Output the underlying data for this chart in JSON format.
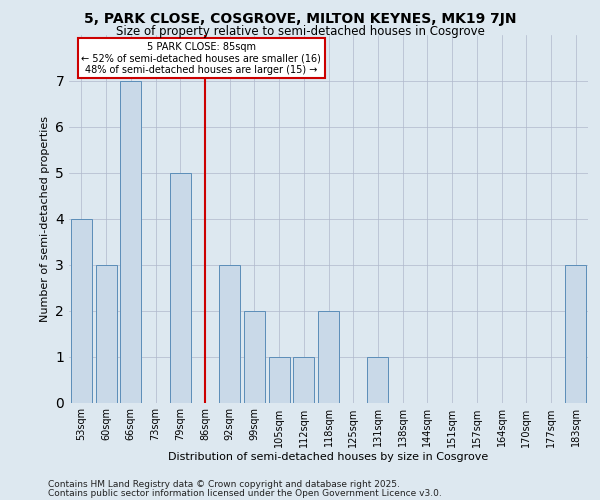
{
  "title": "5, PARK CLOSE, COSGROVE, MILTON KEYNES, MK19 7JN",
  "subtitle": "Size of property relative to semi-detached houses in Cosgrove",
  "xlabel": "Distribution of semi-detached houses by size in Cosgrove",
  "ylabel": "Number of semi-detached properties",
  "categories": [
    "53sqm",
    "60sqm",
    "66sqm",
    "73sqm",
    "79sqm",
    "86sqm",
    "92sqm",
    "99sqm",
    "105sqm",
    "112sqm",
    "118sqm",
    "125sqm",
    "131sqm",
    "138sqm",
    "144sqm",
    "151sqm",
    "157sqm",
    "164sqm",
    "170sqm",
    "177sqm",
    "183sqm"
  ],
  "values": [
    4,
    3,
    7,
    0,
    5,
    0,
    3,
    2,
    1,
    1,
    2,
    0,
    1,
    0,
    0,
    0,
    0,
    0,
    0,
    0,
    3
  ],
  "bar_color": "#c9d9e8",
  "bar_edgecolor": "#5b8db8",
  "reference_line_x": 5,
  "reference_label": "5 PARK CLOSE: 85sqm",
  "annotation_line1": "← 52% of semi-detached houses are smaller (16)",
  "annotation_line2": "48% of semi-detached houses are larger (15) →",
  "annotation_box_color": "#ffffff",
  "annotation_box_edgecolor": "#cc0000",
  "ref_line_color": "#cc0000",
  "ylim": [
    0,
    8
  ],
  "yticks": [
    0,
    1,
    2,
    3,
    4,
    5,
    6,
    7
  ],
  "footer1": "Contains HM Land Registry data © Crown copyright and database right 2025.",
  "footer2": "Contains public sector information licensed under the Open Government Licence v3.0.",
  "bg_color": "#dde8f0",
  "plot_bg_color": "#dde8f0",
  "title_fontsize": 10,
  "subtitle_fontsize": 8.5,
  "tick_fontsize": 7,
  "label_fontsize": 8,
  "footer_fontsize": 6.5,
  "annotation_fontsize": 7
}
